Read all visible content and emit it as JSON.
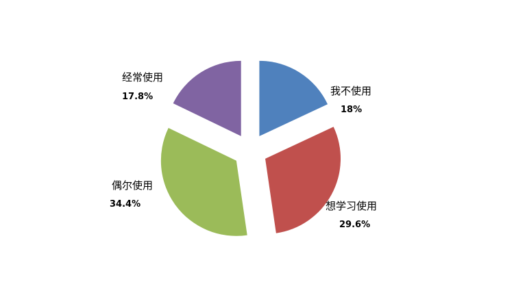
{
  "chart_data": {
    "type": "pie",
    "exploded": true,
    "start_angle": "12 o'clock, clockwise",
    "slices": [
      {
        "label": "我不使用",
        "value": 18,
        "value_label": "18%",
        "color": "#4F81BD"
      },
      {
        "label": "想学习使用",
        "value": 29.6,
        "value_label": "29.6%",
        "color": "#C0504D"
      },
      {
        "label": "偶尔使用",
        "value": 34.4,
        "value_label": "34.4%",
        "color": "#9BBB59"
      },
      {
        "label": "经常使用",
        "value": 17.8,
        "value_label": "17.8%",
        "color": "#8064A2"
      }
    ],
    "legend": "none"
  }
}
